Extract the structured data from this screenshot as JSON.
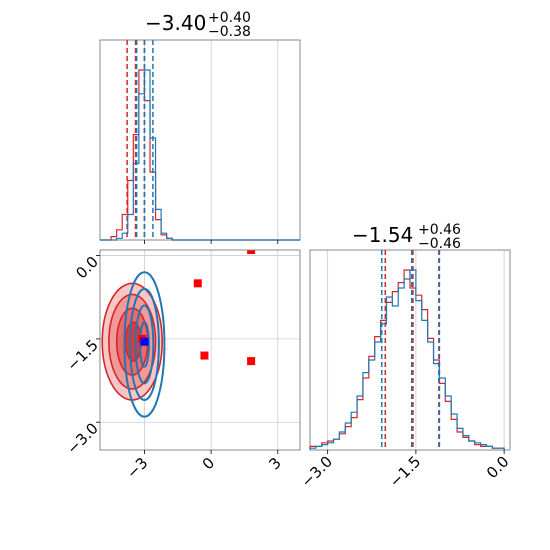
{
  "chart_data": [
    {
      "type": "histogram",
      "panel": "top-left",
      "title": {
        "main": "−3.40",
        "sup": "+0.40",
        "sub": "−0.38"
      },
      "xlim": [
        -5.0,
        4.0
      ],
      "grid": true,
      "series": [
        {
          "color": "#d62728",
          "bin_edges": [
            -5.0,
            -4.75,
            -4.5,
            -4.25,
            -4.0,
            -3.75,
            -3.5,
            -3.25,
            -3.0,
            -2.75,
            -2.5,
            -2.25,
            -2.0,
            -1.75
          ],
          "heights": [
            0,
            0,
            0.02,
            0.06,
            0.15,
            0.35,
            0.62,
            1.0,
            0.82,
            0.4,
            0.12,
            0.03,
            0.01
          ],
          "quantiles": [
            -3.78,
            -3.4,
            -3.0
          ]
        },
        {
          "color": "#1f77b4",
          "bin_edges": [
            -5.0,
            -4.75,
            -4.5,
            -4.25,
            -4.0,
            -3.75,
            -3.5,
            -3.25,
            -3.0,
            -2.75,
            -2.5,
            -2.25,
            -2.0,
            -1.75
          ],
          "heights": [
            0,
            0,
            0.0,
            0.01,
            0.04,
            0.15,
            0.45,
            0.86,
            1.0,
            0.6,
            0.18,
            0.04,
            0.01
          ],
          "quantiles": [
            -3.35,
            -3.0,
            -2.62
          ]
        }
      ]
    },
    {
      "type": "scatter",
      "panel": "bottom-left",
      "xlim": [
        -5.0,
        4.0
      ],
      "ylim": [
        -3.5,
        0.1
      ],
      "xticks": [
        -3,
        0,
        3
      ],
      "yticks": [
        0.0,
        -1.5,
        -3.0
      ],
      "xtick_labels": [
        "−3",
        "0",
        "3"
      ],
      "ytick_labels": [
        "0.0",
        "−1.5",
        "−3.0"
      ],
      "grid": true,
      "truth_lines": {
        "x": [
          -4.3,
          1.8
        ],
        "y": [
          -1.5,
          -3.0
        ]
      },
      "red_contours": [
        {
          "cx": -3.55,
          "cy": -1.55,
          "rx": 1.35,
          "ry": 1.05
        },
        {
          "cx": -3.55,
          "cy": -1.55,
          "rx": 1.05,
          "ry": 0.85
        },
        {
          "cx": -3.55,
          "cy": -1.55,
          "rx": 0.7,
          "ry": 0.6
        },
        {
          "cx": -3.5,
          "cy": -1.55,
          "rx": 0.35,
          "ry": 0.35
        }
      ],
      "blue_contours": [
        {
          "cx": -3.0,
          "cy": -1.6,
          "rx": 0.9,
          "ry": 1.3
        },
        {
          "cx": -3.0,
          "cy": -1.6,
          "rx": 0.65,
          "ry": 1.0
        },
        {
          "cx": -3.0,
          "cy": -1.6,
          "rx": 0.4,
          "ry": 0.7
        },
        {
          "cx": -3.0,
          "cy": -1.6,
          "rx": 0.2,
          "ry": 0.4
        }
      ],
      "red_markers": [
        {
          "x": -0.6,
          "y": -0.5
        },
        {
          "x": -0.3,
          "y": -1.8
        },
        {
          "x": 1.8,
          "y": -1.9
        },
        {
          "x": 1.8,
          "y": 0.1
        },
        {
          "x": -3.1,
          "y": -1.5
        }
      ],
      "blue_markers": [
        {
          "x": -3.0,
          "y": -1.55
        }
      ]
    },
    {
      "type": "histogram",
      "panel": "bottom-right",
      "title": {
        "main": "−1.54",
        "sup": "+0.46",
        "sub": "−0.46"
      },
      "xlim": [
        -3.3,
        0.1
      ],
      "xticks": [
        -3.0,
        -1.5,
        0.0
      ],
      "xtick_labels": [
        "−3.0",
        "−1.5",
        "0.0"
      ],
      "grid": true,
      "series": [
        {
          "color": "#d62728",
          "bin_edges": [
            -3.3,
            -3.2,
            -3.1,
            -3.0,
            -2.9,
            -2.8,
            -2.7,
            -2.6,
            -2.5,
            -2.4,
            -2.3,
            -2.2,
            -2.1,
            -2.0,
            -1.9,
            -1.8,
            -1.7,
            -1.6,
            -1.5,
            -1.4,
            -1.3,
            -1.2,
            -1.1,
            -1.0,
            -0.9,
            -0.8,
            -0.7,
            -0.6,
            -0.5,
            -0.4,
            -0.3,
            -0.2,
            -0.1,
            0.0
          ],
          "heights": [
            0.02,
            0.02,
            0.04,
            0.05,
            0.06,
            0.09,
            0.13,
            0.18,
            0.28,
            0.4,
            0.52,
            0.63,
            0.72,
            0.82,
            0.88,
            0.93,
            1.0,
            0.9,
            0.86,
            0.78,
            0.62,
            0.5,
            0.37,
            0.27,
            0.17,
            0.1,
            0.07,
            0.05,
            0.03,
            0.02,
            0.02,
            0.01,
            0.01
          ],
          "quantiles": [
            -2.02,
            -1.55,
            -1.1
          ]
        },
        {
          "color": "#1f77b4",
          "bin_edges": [
            -3.3,
            -3.2,
            -3.1,
            -3.0,
            -2.9,
            -2.8,
            -2.7,
            -2.6,
            -2.5,
            -2.4,
            -2.3,
            -2.2,
            -2.1,
            -2.0,
            -1.9,
            -1.8,
            -1.7,
            -1.6,
            -1.5,
            -1.4,
            -1.3,
            -1.2,
            -1.1,
            -1.0,
            -0.9,
            -0.8,
            -0.7,
            -0.6,
            -0.5,
            -0.4,
            -0.3,
            -0.2,
            -0.1,
            0.0
          ],
          "heights": [
            0.01,
            0.02,
            0.03,
            0.04,
            0.06,
            0.1,
            0.15,
            0.21,
            0.3,
            0.43,
            0.5,
            0.6,
            0.7,
            0.85,
            0.8,
            0.9,
            0.95,
            1.0,
            0.83,
            0.72,
            0.6,
            0.48,
            0.4,
            0.3,
            0.2,
            0.12,
            0.08,
            0.05,
            0.04,
            0.03,
            0.02,
            0.01,
            0.01
          ],
          "quantiles": [
            -2.08,
            -1.57,
            -1.11
          ]
        }
      ]
    }
  ]
}
